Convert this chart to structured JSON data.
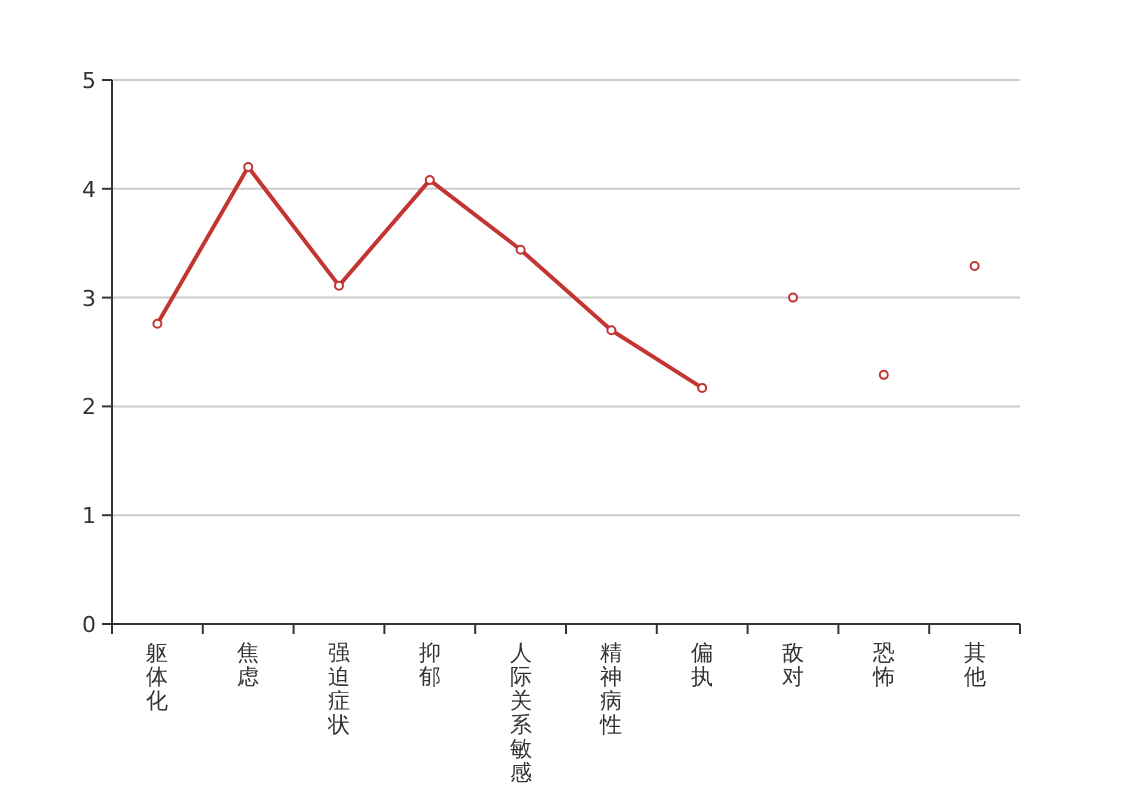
{
  "chart_data": {
    "type": "line",
    "categories": [
      "躯体化",
      "焦虑",
      "强迫症状",
      "抑郁",
      "人际关系敏感",
      "精神病性",
      "偏执",
      "敌对",
      "恐怖",
      "其他"
    ],
    "series": [
      {
        "type": "line",
        "color": "#c23531",
        "values": [
          2.76,
          4.2,
          3.11,
          4.08,
          3.44,
          2.7,
          2.17,
          null,
          null,
          null
        ]
      },
      {
        "type": "scatter",
        "color": "#c23531",
        "values": [
          null,
          null,
          null,
          null,
          null,
          null,
          null,
          3.0,
          2.29,
          3.29
        ]
      }
    ],
    "ylim": [
      0,
      5
    ],
    "yticks": [
      0,
      1,
      2,
      3,
      4,
      5
    ],
    "grid": "y",
    "marker": "circle",
    "line_style": "solid"
  }
}
